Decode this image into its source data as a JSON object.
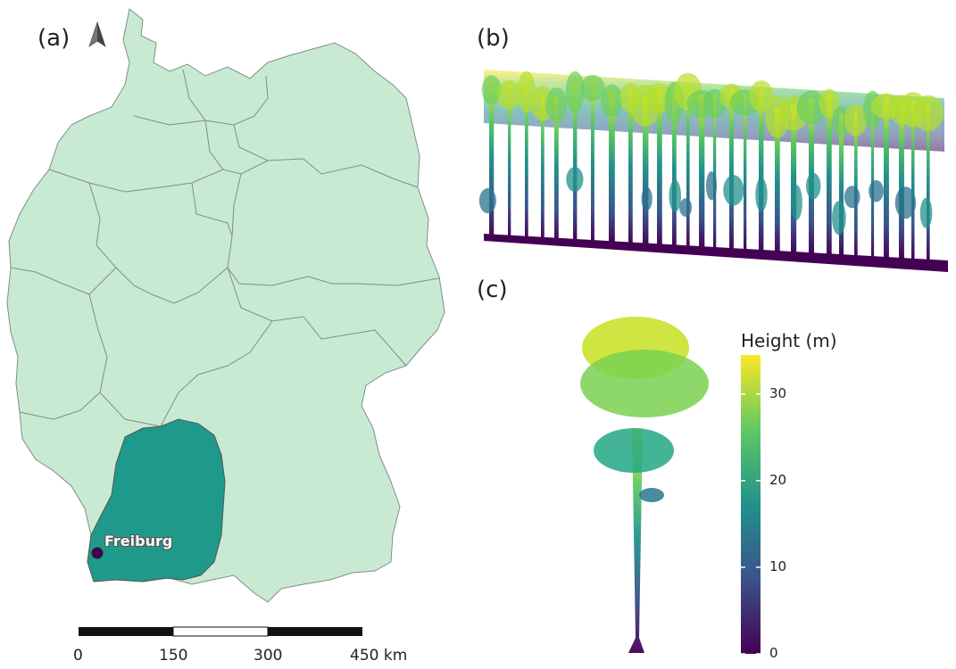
{
  "panels": {
    "a": {
      "label": "(a)"
    },
    "b": {
      "label": "(b)"
    },
    "c": {
      "label": "(c)"
    }
  },
  "map": {
    "country_fill": "#c8ead2",
    "border_color": "#7f8f85",
    "highlight_fill": "#1f9a8a",
    "city": {
      "name": "Freiburg",
      "marker_color": "#440154"
    },
    "north_arrow": "north-arrow-icon"
  },
  "scale_bar": {
    "labels": [
      "0",
      "150",
      "300",
      "450 km"
    ]
  },
  "colorbar": {
    "title": "Height (m)",
    "ticks": [
      {
        "value": 0,
        "label": "0"
      },
      {
        "value": 10,
        "label": "10"
      },
      {
        "value": 20,
        "label": "20"
      },
      {
        "value": 30,
        "label": "30"
      }
    ],
    "range": [
      0,
      34.5
    ],
    "colormap": "viridis",
    "colors": [
      "#440154",
      "#3b528b",
      "#21918c",
      "#5ec962",
      "#fde725"
    ]
  }
}
